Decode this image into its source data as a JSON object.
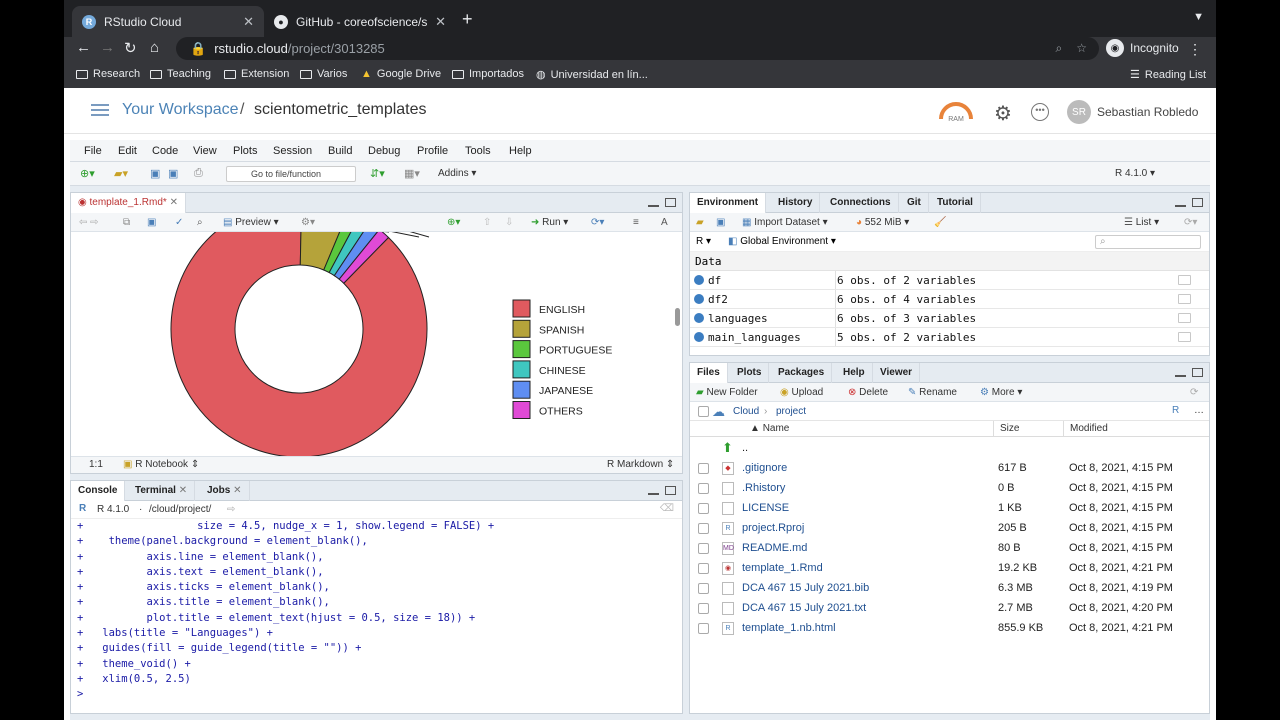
{
  "browser": {
    "tabs": [
      {
        "title": "RStudio Cloud",
        "favicon": "R"
      },
      {
        "title": "GitHub - coreofscience/scient",
        "favicon": "GH"
      }
    ],
    "new_tab": "+",
    "url_host": "rstudio.cloud",
    "url_path": "/project/3013285",
    "profile": "Incognito",
    "bookmarks": [
      "Research",
      "Teaching",
      "Extension",
      "Varios",
      "Google Drive",
      "Importados",
      "Universidad en lín..."
    ],
    "reading_list": "Reading List"
  },
  "rstudio_header": {
    "workspace": "Your Workspace",
    "separator": "/",
    "project": "scientometric_templates",
    "ram_label": "RAM",
    "avatar_initials": "SR",
    "user_name": "Sebastian Robledo"
  },
  "menu": [
    "File",
    "Edit",
    "Code",
    "View",
    "Plots",
    "Session",
    "Build",
    "Debug",
    "Profile",
    "Tools",
    "Help"
  ],
  "toolbar": {
    "goto_placeholder": "Go to file/function",
    "addins": "Addins",
    "r_version": "R 4.1.0"
  },
  "editor": {
    "tab": "template_1.Rmd*",
    "preview": "Preview",
    "run": "Run",
    "position": "1:1",
    "notebook": "R Notebook",
    "mode": "R Markdown"
  },
  "chart_data": {
    "type": "pie",
    "donut": true,
    "categories": [
      "ENGLISH",
      "SPANISH",
      "PORTUGUESE",
      "CHINESE",
      "JAPANESE",
      "OTHERS"
    ],
    "colors": [
      "#e05a5f",
      "#b5a33a",
      "#5ac73d",
      "#3fc7c0",
      "#5f8ef2",
      "#e04ad6"
    ],
    "values": [
      88,
      6,
      1.5,
      1.5,
      1.5,
      1.5
    ],
    "legend_position": "right"
  },
  "console": {
    "tabs": [
      "Console",
      "Terminal",
      "Jobs"
    ],
    "r_version": "R 4.1.0",
    "path": "/cloud/project/",
    "lines": [
      "+                  size = 4.5, nudge_x = 1, show.legend = FALSE) +",
      "+    theme(panel.background = element_blank(),",
      "+          axis.line = element_blank(),",
      "+          axis.text = element_blank(),",
      "+          axis.ticks = element_blank(),",
      "+          axis.title = element_blank(),",
      "+          plot.title = element_text(hjust = 0.5, size = 18)) +",
      "+   labs(title = \"Languages\") +",
      "+   guides(fill = guide_legend(title = \"\")) +",
      "+   theme_void() +",
      "+   xlim(0.5, 2.5)",
      ">"
    ]
  },
  "environment": {
    "tabs": [
      "Environment",
      "History",
      "Connections",
      "Git",
      "Tutorial"
    ],
    "import_dataset": "Import Dataset",
    "memory": "552 MiB",
    "list_view": "List",
    "lang": "R",
    "scope": "Global Environment",
    "section": "Data",
    "rows": [
      {
        "name": "df",
        "value": "6 obs. of 2 variables"
      },
      {
        "name": "df2",
        "value": "6 obs. of 4 variables"
      },
      {
        "name": "languages",
        "value": "6 obs. of 3 variables"
      },
      {
        "name": "main_languages",
        "value": "5 obs. of 2 variables"
      }
    ]
  },
  "files": {
    "tabs": [
      "Files",
      "Plots",
      "Packages",
      "Help",
      "Viewer"
    ],
    "new_folder": "New Folder",
    "upload": "Upload",
    "delete": "Delete",
    "rename": "Rename",
    "more": "More",
    "crumb_root": "Cloud",
    "crumb_dir": "project",
    "col_name": "Name",
    "col_size": "Size",
    "col_modified": "Modified",
    "up": "..",
    "rows": [
      {
        "name": ".gitignore",
        "size": "617 B",
        "modified": "Oct 8, 2021, 4:15 PM",
        "icon": "gitignore"
      },
      {
        "name": ".Rhistory",
        "size": "0 B",
        "modified": "Oct 8, 2021, 4:15 PM",
        "icon": "text"
      },
      {
        "name": "LICENSE",
        "size": "1 KB",
        "modified": "Oct 8, 2021, 4:15 PM",
        "icon": "text"
      },
      {
        "name": "project.Rproj",
        "size": "205 B",
        "modified": "Oct 8, 2021, 4:15 PM",
        "icon": "rproj"
      },
      {
        "name": "README.md",
        "size": "80 B",
        "modified": "Oct 8, 2021, 4:15 PM",
        "icon": "md"
      },
      {
        "name": "template_1.Rmd",
        "size": "19.2 KB",
        "modified": "Oct 8, 2021, 4:21 PM",
        "icon": "rmd"
      },
      {
        "name": "DCA 467 15 July 2021.bib",
        "size": "6.3 MB",
        "modified": "Oct 8, 2021, 4:19 PM",
        "icon": "text"
      },
      {
        "name": "DCA 467 15 July 2021.txt",
        "size": "2.7 MB",
        "modified": "Oct 8, 2021, 4:20 PM",
        "icon": "text"
      },
      {
        "name": "template_1.nb.html",
        "size": "855.9 KB",
        "modified": "Oct 8, 2021, 4:21 PM",
        "icon": "html"
      }
    ]
  }
}
